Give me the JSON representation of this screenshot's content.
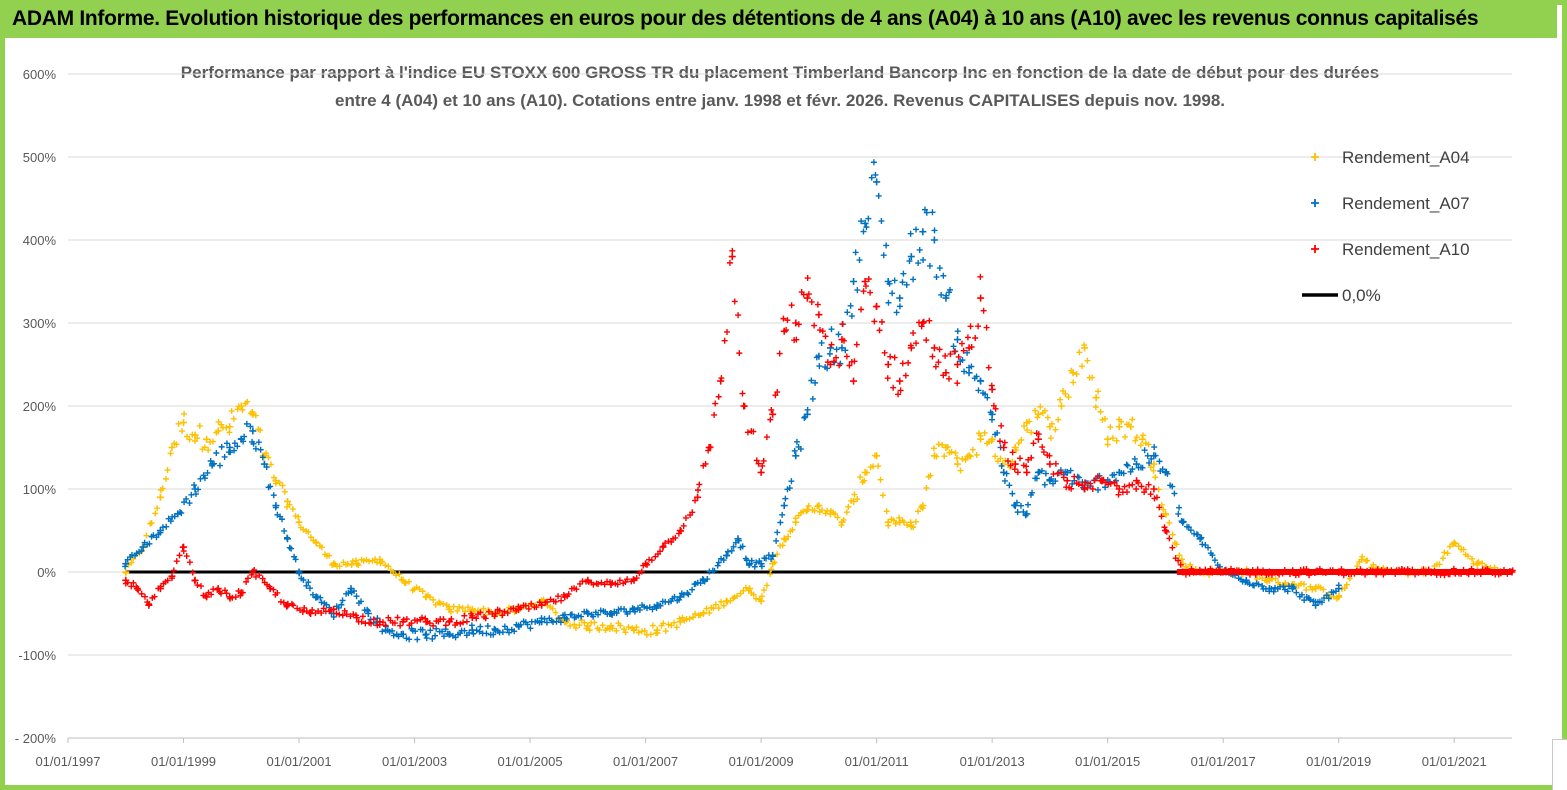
{
  "banner": {
    "title": "ADAM Informe. Evolution historique des performances en euros pour des détentions de 4 ans (A04) à 10 ans (A10) avec les revenus connus capitalisés"
  },
  "colors": {
    "banner_green": "#92d050",
    "A04": "#ffc000",
    "A07": "#0070c0",
    "A10": "#ff0000",
    "zero_line": "#000000"
  },
  "chart_data": {
    "type": "scatter",
    "title_line1": "Performance par rapport à l'indice EU STOXX 600 GROSS TR  du placement Timberland Bancorp Inc en fonction de la date de début pour des durées",
    "title_line2": "entre 4 (A04) et 10 ans (A10). Cotations entre janv. 1998 et févr. 2026. Revenus CAPITALISES depuis nov. 1998.",
    "xlabel": "",
    "ylabel": "",
    "xlim": [
      1997.0,
      2022.0
    ],
    "ylim": [
      -200,
      600
    ],
    "y_ticks": [
      -200,
      -100,
      0,
      100,
      200,
      300,
      400,
      500,
      600
    ],
    "y_tick_labels": [
      "- 200%",
      "-100%",
      "0%",
      "100%",
      "200%",
      "300%",
      "400%",
      "500%",
      "600%"
    ],
    "x_tick_labels": [
      "01/01/1997",
      "01/01/1999",
      "01/01/2001",
      "01/01/2003",
      "01/01/2005",
      "01/01/2007",
      "01/01/2009",
      "01/01/2011",
      "01/01/2013",
      "01/01/2015",
      "01/01/2017",
      "01/01/2019",
      "01/01/2021"
    ],
    "x_tick_years": [
      1997,
      1999,
      2001,
      2003,
      2005,
      2007,
      2009,
      2011,
      2013,
      2015,
      2017,
      2019,
      2021
    ],
    "legend_position": "top-right",
    "legend": [
      "Rendement_A04",
      "Rendement_A07",
      "Rendement_A10",
      "0,0%"
    ],
    "series": [
      {
        "name": "Rendement_A04",
        "color": "#ffc000",
        "x": [
          1998.0,
          1998.3,
          1998.6,
          1998.8,
          1999.0,
          1999.2,
          1999.4,
          1999.6,
          1999.8,
          2000.0,
          2000.2,
          2000.4,
          2000.6,
          2000.8,
          2001.0,
          2001.3,
          2001.6,
          2002.0,
          2002.4,
          2002.8,
          2003.2,
          2003.6,
          2004.0,
          2004.4,
          2004.8,
          2005.2,
          2005.6,
          2006.0,
          2006.4,
          2006.8,
          2007.2,
          2007.6,
          2008.0,
          2008.4,
          2008.8,
          2009.0,
          2009.2,
          2009.4,
          2009.6,
          2009.8,
          2010.0,
          2010.2,
          2010.4,
          2010.6,
          2010.8,
          2011.0,
          2011.2,
          2011.4,
          2011.6,
          2011.8,
          2012.0,
          2012.2,
          2012.4,
          2012.6,
          2012.8,
          2013.0,
          2013.2,
          2013.4,
          2013.6,
          2013.8,
          2014.0,
          2014.2,
          2014.4,
          2014.6,
          2014.8,
          2015.0,
          2015.2,
          2015.4,
          2015.6,
          2015.8,
          2016.0,
          2016.3,
          2016.6,
          2017.0,
          2017.4,
          2017.8,
          2018.2,
          2018.6,
          2019.0,
          2019.4,
          2019.8,
          2020.2,
          2020.6,
          2021.0,
          2021.4,
          2021.8
        ],
        "values": [
          0,
          30,
          90,
          150,
          180,
          165,
          160,
          170,
          175,
          200,
          190,
          140,
          110,
          85,
          60,
          35,
          10,
          10,
          15,
          -10,
          -30,
          -45,
          -45,
          -50,
          -45,
          -35,
          -60,
          -65,
          -65,
          -70,
          -70,
          -60,
          -50,
          -35,
          -20,
          -35,
          10,
          40,
          60,
          75,
          80,
          70,
          60,
          85,
          120,
          140,
          60,
          60,
          55,
          80,
          140,
          150,
          130,
          140,
          160,
          160,
          120,
          150,
          180,
          190,
          175,
          200,
          240,
          270,
          210,
          160,
          175,
          175,
          160,
          130,
          70,
          10,
          0,
          0,
          0,
          -10,
          -15,
          -20,
          -30,
          15,
          0,
          0,
          0,
          35,
          10,
          0
        ]
      },
      {
        "name": "Rendement_A07",
        "color": "#0070c0",
        "x": [
          1998.0,
          1998.3,
          1998.6,
          1998.9,
          1999.2,
          1999.5,
          1999.8,
          2000.0,
          2000.2,
          2000.4,
          2000.6,
          2000.8,
          2001.0,
          2001.3,
          2001.6,
          2001.9,
          2002.2,
          2002.5,
          2002.8,
          2003.2,
          2003.6,
          2004.0,
          2004.4,
          2004.8,
          2005.2,
          2005.6,
          2006.0,
          2006.4,
          2006.8,
          2007.2,
          2007.6,
          2008.0,
          2008.4,
          2008.6,
          2008.8,
          2009.0,
          2009.2,
          2009.4,
          2009.6,
          2009.8,
          2010.0,
          2010.2,
          2010.4,
          2010.6,
          2010.8,
          2011.0,
          2011.2,
          2011.4,
          2011.6,
          2011.8,
          2012.0,
          2012.2,
          2012.4,
          2012.6,
          2012.8,
          2013.0,
          2013.2,
          2013.4,
          2013.6,
          2013.8,
          2014.0,
          2014.3,
          2014.6,
          2014.9,
          2015.2,
          2015.5,
          2015.8,
          2016.0,
          2016.3,
          2016.6,
          2017.0,
          2017.4,
          2017.8,
          2018.2,
          2018.6,
          2019.0
        ],
        "values": [
          10,
          30,
          50,
          70,
          100,
          130,
          150,
          160,
          170,
          130,
          80,
          40,
          0,
          -30,
          -50,
          -20,
          -50,
          -70,
          -75,
          -75,
          -75,
          -70,
          -70,
          -65,
          -60,
          -55,
          -50,
          -50,
          -45,
          -40,
          -30,
          -10,
          20,
          40,
          10,
          10,
          20,
          80,
          140,
          190,
          260,
          270,
          270,
          350,
          420,
          470,
          350,
          330,
          380,
          410,
          400,
          330,
          280,
          240,
          230,
          190,
          120,
          80,
          70,
          120,
          110,
          120,
          100,
          110,
          120,
          130,
          140,
          120,
          60,
          40,
          0,
          -10,
          -20,
          -20,
          -40,
          -20
        ]
      },
      {
        "name": "Rendement_A10",
        "color": "#ff0000",
        "x": [
          1998.0,
          1998.2,
          1998.4,
          1998.6,
          1998.8,
          1999.0,
          1999.2,
          1999.4,
          1999.6,
          1999.8,
          2000.0,
          2000.2,
          2000.5,
          2000.8,
          2001.2,
          2001.6,
          2002.0,
          2002.4,
          2002.8,
          2003.2,
          2003.6,
          2004.0,
          2004.4,
          2004.8,
          2005.2,
          2005.6,
          2006.0,
          2006.4,
          2006.8,
          2007.0,
          2007.3,
          2007.6,
          2007.9,
          2008.1,
          2008.3,
          2008.5,
          2008.7,
          2009.0,
          2009.2,
          2009.4,
          2009.6,
          2009.8,
          2010.0,
          2010.2,
          2010.4,
          2010.6,
          2010.8,
          2011.0,
          2011.2,
          2011.4,
          2011.6,
          2011.8,
          2012.0,
          2012.2,
          2012.4,
          2012.6,
          2012.8,
          2013.0,
          2013.2,
          2013.4,
          2013.6,
          2013.8,
          2014.0,
          2014.3,
          2014.6,
          2014.9,
          2015.2,
          2015.5,
          2015.8,
          2016.0,
          2016.3,
          2016.6,
          2017.0,
          2017.4,
          2017.8,
          2018.2,
          2018.6,
          2019.0,
          2019.4,
          2019.8,
          2020.2,
          2020.6,
          2021.0,
          2021.4,
          2021.8,
          2022.0
        ],
        "values": [
          -10,
          -20,
          -40,
          -20,
          -5,
          30,
          -10,
          -30,
          -20,
          -30,
          -25,
          0,
          -20,
          -40,
          -50,
          -45,
          -55,
          -60,
          -60,
          -60,
          -60,
          -55,
          -50,
          -45,
          -40,
          -30,
          -10,
          -15,
          -10,
          10,
          30,
          50,
          90,
          150,
          230,
          380,
          200,
          120,
          190,
          290,
          300,
          330,
          310,
          250,
          280,
          230,
          350,
          320,
          250,
          230,
          270,
          300,
          270,
          240,
          250,
          270,
          330,
          220,
          150,
          130,
          120,
          160,
          130,
          110,
          100,
          110,
          100,
          110,
          100,
          50,
          0,
          0,
          0,
          0,
          0,
          0,
          0,
          0,
          0,
          0,
          0,
          0,
          0,
          0,
          0,
          0
        ]
      }
    ]
  }
}
